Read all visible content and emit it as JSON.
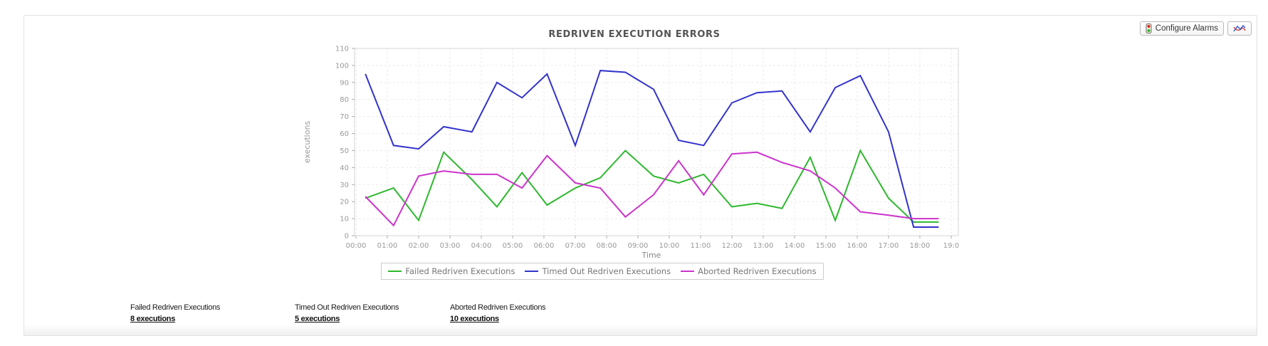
{
  "header": {
    "configure_alarms_label": "Configure Alarms"
  },
  "chart_data": {
    "type": "line",
    "title": "REDRIVEN EXECUTION ERRORS",
    "xlabel": "Time",
    "ylabel": "executions",
    "ylim": [
      0,
      110
    ],
    "yticks": [
      0,
      10,
      20,
      30,
      40,
      50,
      60,
      70,
      80,
      90,
      100,
      110
    ],
    "xtick_labels": [
      "00:00",
      "01:00",
      "02:00",
      "03:00",
      "04:00",
      "05:00",
      "06:00",
      "07:00",
      "08:00",
      "09:00",
      "10:00",
      "11:00",
      "12:00",
      "13:00",
      "14:00",
      "15:00",
      "16:00",
      "17:00",
      "18:00",
      "19:0"
    ],
    "x_hours": [
      0.3,
      1.2,
      2.0,
      2.8,
      3.7,
      4.5,
      5.3,
      6.1,
      7.0,
      7.8,
      8.6,
      9.5,
      10.3,
      11.1,
      12.0,
      12.8,
      13.6,
      14.5,
      15.3,
      16.1,
      17.0,
      17.8,
      18.6
    ],
    "grid": true,
    "legend_position": "bottom",
    "series": [
      {
        "name": "Failed Redriven Executions",
        "color": "#2eb82e",
        "values": [
          22,
          28,
          9,
          49,
          33,
          17,
          37,
          18,
          28,
          34,
          50,
          35,
          31,
          36,
          17,
          19,
          16,
          46,
          9,
          50,
          22,
          8,
          8
        ]
      },
      {
        "name": "Timed Out Redriven Executions",
        "color": "#3333cc",
        "values": [
          95,
          53,
          51,
          64,
          61,
          90,
          81,
          95,
          53,
          97,
          96,
          86,
          56,
          53,
          78,
          84,
          85,
          61,
          87,
          94,
          61,
          5,
          5
        ]
      },
      {
        "name": "Aborted Redriven Executions",
        "color": "#cc33cc",
        "values": [
          23,
          6,
          35,
          38,
          36,
          36,
          28,
          47,
          31,
          28,
          11,
          24,
          44,
          24,
          48,
          49,
          43,
          38,
          28,
          14,
          12,
          10,
          10
        ]
      }
    ]
  },
  "stats": {
    "items": [
      {
        "label": "Failed Redriven Executions",
        "value": "8 executions"
      },
      {
        "label": "Timed Out Redriven Executions",
        "value": "5 executions"
      },
      {
        "label": "Aborted Redriven Executions",
        "value": "10 executions"
      }
    ]
  }
}
